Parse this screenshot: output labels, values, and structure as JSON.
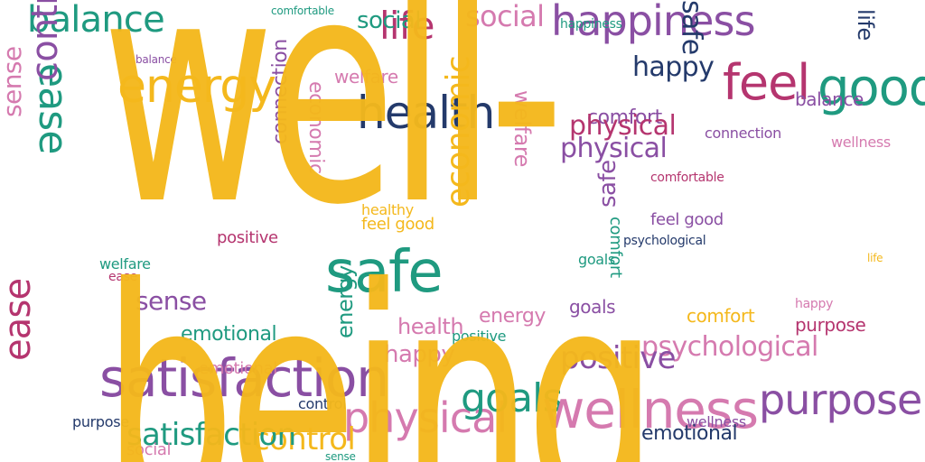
{
  "hero_word": "well-being",
  "colors": {
    "hero": "#f4b81c",
    "teal": "#1f9a80",
    "purple": "#8a4fa3",
    "pink": "#d57aaf",
    "navy": "#243a6b",
    "magenta": "#b5356f",
    "yellow": "#f4b81c",
    "background": "#ffffff"
  },
  "words": [
    "balance",
    "happiness",
    "social",
    "safe",
    "life",
    "comfortable",
    "comfort",
    "welfare",
    "energy",
    "ease",
    "control",
    "sense",
    "health",
    "feel",
    "good",
    "purpose",
    "physical",
    "economic",
    "emotional",
    "connection",
    "psychological",
    "happy",
    "positive",
    "goals",
    "satisfaction",
    "wellness",
    "feel good",
    "social",
    "wellness",
    "economic",
    "purpose",
    "physical",
    "welfare",
    "balance",
    "energy",
    "control",
    "goals",
    "positive",
    "happy",
    "life",
    "ease",
    "safe",
    "sense",
    "health",
    "comfort",
    "satisfaction",
    "connection",
    "emotional",
    "psychological",
    "comfortable",
    "happiness",
    "feel good",
    "social",
    "healthy",
    "energy",
    "balance",
    "welfare",
    "control",
    "purpose",
    "positive",
    "goals",
    "happy",
    "life",
    "comfort",
    "physical",
    "wellness",
    "emotional",
    "ease",
    "sense",
    "safe"
  ]
}
